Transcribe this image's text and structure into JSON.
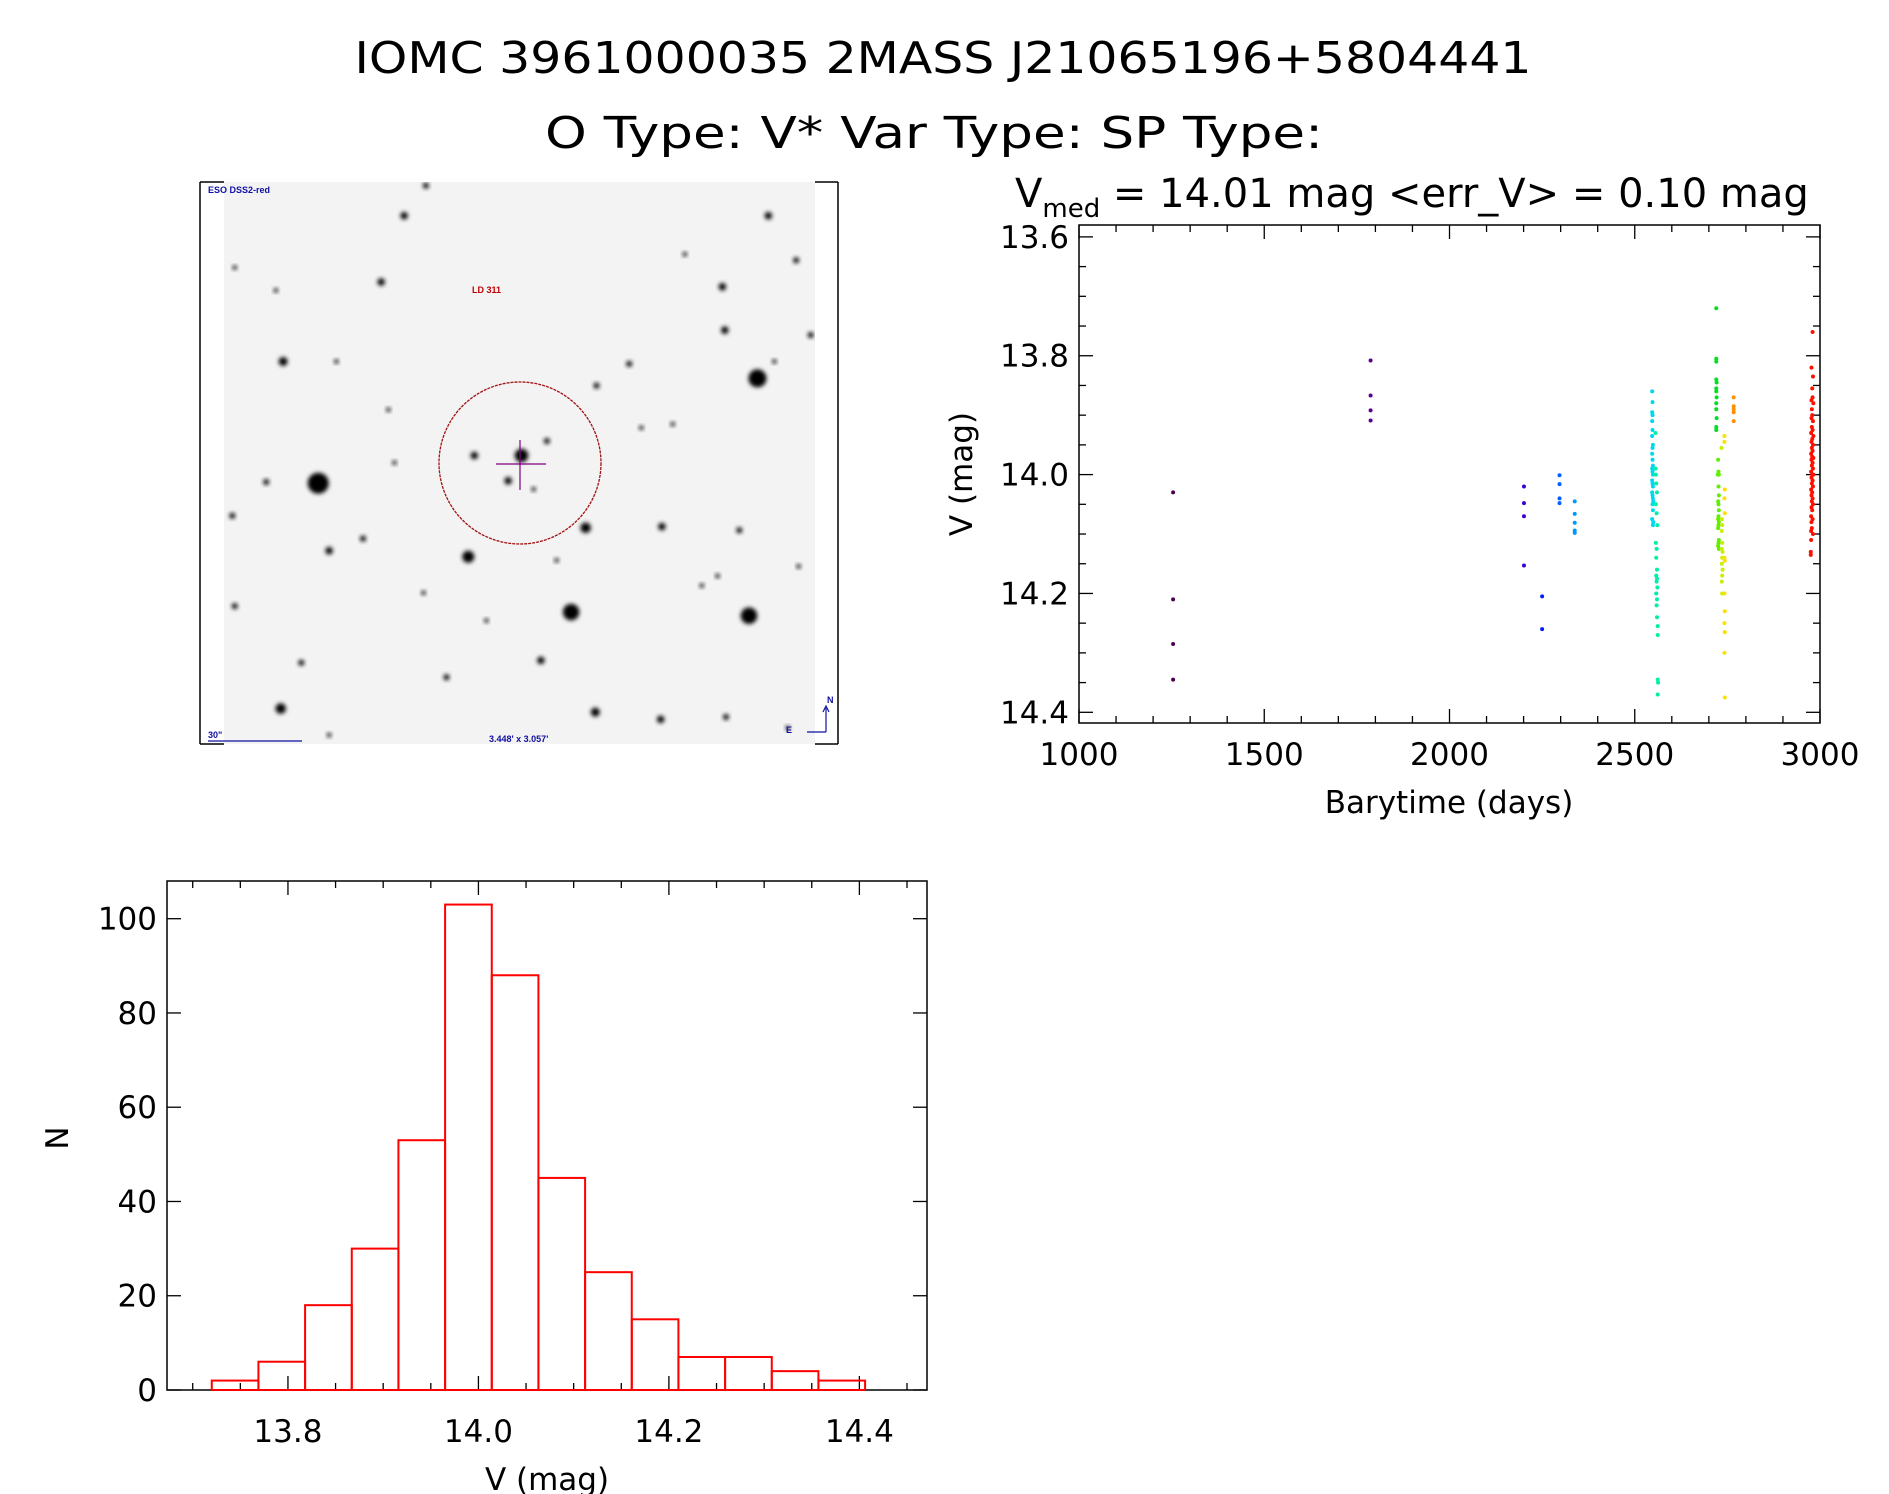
{
  "header": {
    "title_line1": "IOMC 3961000035    2MASS J21065196+5804441",
    "title_line2": "O Type: V*   Var Type:    SP Type:",
    "vmed_prefix": "V",
    "vmed_sub": "med",
    "vmed_rest": " = 14.01 mag <err_V> = 0.10 mag"
  },
  "image_panel": {
    "survey_label": "ESO DSS2-red",
    "object_label": "LD 311",
    "scale_label": "30\"",
    "fov_label": "3.448' x 3.057'",
    "north_label": "N",
    "east_label": "E",
    "label_color": "#1010a0",
    "object_color": "#c00000",
    "circle_color": "#a01010",
    "cross_color": "#800080"
  },
  "chart_data": [
    {
      "type": "scatter",
      "title": "V_med = 14.01 mag <err_V> = 0.10 mag",
      "xlabel": "Barytime (days)",
      "ylabel": "V (mag)",
      "xlim": [
        1000,
        3000
      ],
      "ylim": [
        14.418,
        13.58
      ],
      "xticks": [
        1000,
        1500,
        2000,
        2500,
        3000
      ],
      "xtick_labels": [
        "1000",
        "1500",
        "2000",
        "2500",
        "3000"
      ],
      "yticks": [
        13.6,
        13.8,
        14.0,
        14.2,
        14.4
      ],
      "ytick_labels": [
        "13.6",
        "13.8",
        "14.0",
        "14.2",
        "14.4"
      ],
      "groups": [
        {
          "color": "#4b0050",
          "points": [
            [
              1254,
              14.03
            ],
            [
              1254,
              14.21
            ],
            [
              1254,
              14.285
            ],
            [
              1254,
              14.345
            ]
          ]
        },
        {
          "color": "#5a0090",
          "points": [
            [
              1787,
              13.808
            ],
            [
              1787,
              13.867
            ],
            [
              1787,
              13.892
            ],
            [
              1787,
              13.909
            ]
          ]
        },
        {
          "color": "#4000d0",
          "points": [
            [
              2201,
              14.02
            ],
            [
              2201,
              14.048
            ],
            [
              2201,
              14.07
            ],
            [
              2201,
              14.153
            ]
          ]
        },
        {
          "color": "#0020ff",
          "points": [
            [
              2250,
              14.205
            ],
            [
              2250,
              14.26
            ]
          ]
        },
        {
          "color": "#0060ff",
          "points": [
            [
              2297,
              14.001
            ],
            [
              2297,
              14.016
            ],
            [
              2297,
              14.04
            ],
            [
              2297,
              14.048
            ]
          ]
        },
        {
          "color": "#0098ff",
          "points": [
            [
              2338,
              14.045
            ],
            [
              2338,
              14.066
            ],
            [
              2338,
              14.081
            ],
            [
              2338,
              14.094
            ],
            [
              2338,
              14.098
            ]
          ]
        },
        {
          "color": "#00d8f0",
          "points": [
            [
              2547,
              13.86
            ],
            [
              2548,
              13.878
            ],
            [
              2547,
              13.895
            ],
            [
              2548,
              13.9
            ],
            [
              2547,
              13.91
            ],
            [
              2548,
              13.925
            ],
            [
              2547,
              13.935
            ],
            [
              2549,
              13.95
            ],
            [
              2548,
              13.955
            ],
            [
              2547,
              13.965
            ],
            [
              2548,
              13.975
            ],
            [
              2549,
              13.985
            ],
            [
              2547,
              13.99
            ],
            [
              2548,
              13.995
            ],
            [
              2549,
              14.0
            ],
            [
              2547,
              14.01
            ],
            [
              2548,
              14.015
            ],
            [
              2549,
              14.02
            ],
            [
              2547,
              14.03
            ],
            [
              2548,
              14.035
            ],
            [
              2549,
              14.04
            ],
            [
              2550,
              14.045
            ],
            [
              2548,
              14.05
            ],
            [
              2549,
              14.06
            ],
            [
              2547,
              14.075
            ],
            [
              2550,
              14.08
            ],
            [
              2549,
              14.085
            ]
          ]
        },
        {
          "color": "#00f0a8",
          "points": [
            [
              2556,
              13.93
            ],
            [
              2556,
              13.99
            ],
            [
              2557,
              14.0
            ],
            [
              2558,
              14.015
            ],
            [
              2560,
              14.03
            ],
            [
              2557,
              14.05
            ],
            [
              2559,
              14.065
            ],
            [
              2561,
              14.085
            ],
            [
              2557,
              14.115
            ],
            [
              2559,
              14.125
            ],
            [
              2558,
              14.14
            ],
            [
              2560,
              14.16
            ],
            [
              2558,
              14.17
            ],
            [
              2560,
              14.175
            ],
            [
              2559,
              14.18
            ],
            [
              2561,
              14.19
            ],
            [
              2558,
              14.2
            ],
            [
              2560,
              14.21
            ],
            [
              2559,
              14.22
            ],
            [
              2560,
              14.24
            ],
            [
              2562,
              14.255
            ],
            [
              2562,
              14.27
            ],
            [
              2562,
              14.345
            ],
            [
              2563,
              14.35
            ],
            [
              2562,
              14.37
            ]
          ]
        },
        {
          "color": "#00e020",
          "points": [
            [
              2720,
              13.72
            ],
            [
              2720,
              13.805
            ],
            [
              2720,
              13.81
            ],
            [
              2720,
              13.84
            ],
            [
              2721,
              13.845
            ],
            [
              2720,
              13.855
            ],
            [
              2720,
              13.86
            ],
            [
              2721,
              13.87
            ],
            [
              2720,
              13.88
            ],
            [
              2720,
              13.89
            ],
            [
              2721,
              13.905
            ],
            [
              2720,
              13.92
            ],
            [
              2720,
              13.925
            ]
          ]
        },
        {
          "color": "#60f000",
          "points": [
            [
              2725,
              13.975
            ],
            [
              2726,
              13.995
            ],
            [
              2727,
              14.0
            ],
            [
              2724,
              14.0
            ],
            [
              2726,
              14.02
            ],
            [
              2727,
              14.035
            ],
            [
              2725,
              14.045
            ],
            [
              2726,
              14.05
            ],
            [
              2727,
              14.06
            ],
            [
              2726,
              14.07
            ],
            [
              2725,
              14.075
            ],
            [
              2727,
              14.08
            ],
            [
              2726,
              14.085
            ],
            [
              2725,
              14.09
            ],
            [
              2727,
              14.11
            ],
            [
              2726,
              14.115
            ],
            [
              2725,
              14.12
            ],
            [
              2727,
              14.125
            ]
          ]
        },
        {
          "color": "#c8f000",
          "points": [
            [
              2734,
              13.955
            ],
            [
              2735,
              14.075
            ],
            [
              2736,
              14.085
            ],
            [
              2735,
              14.095
            ],
            [
              2736,
              14.115
            ],
            [
              2735,
              14.125
            ],
            [
              2737,
              14.13
            ],
            [
              2736,
              14.14
            ],
            [
              2735,
              14.15
            ],
            [
              2737,
              14.16
            ],
            [
              2736,
              14.17
            ],
            [
              2735,
              14.18
            ],
            [
              2736,
              14.2
            ]
          ]
        },
        {
          "color": "#ffe000",
          "points": [
            [
              2742,
              13.935
            ],
            [
              2742,
              13.945
            ],
            [
              2743,
              14.025
            ],
            [
              2742,
              14.04
            ],
            [
              2743,
              14.065
            ],
            [
              2742,
              14.14
            ],
            [
              2743,
              14.145
            ],
            [
              2742,
              14.2
            ],
            [
              2743,
              14.23
            ],
            [
              2742,
              14.25
            ],
            [
              2743,
              14.265
            ],
            [
              2742,
              14.3
            ],
            [
              2743,
              14.375
            ]
          ]
        },
        {
          "color": "#ff9000",
          "points": [
            [
              2767,
              13.87
            ],
            [
              2767,
              13.885
            ],
            [
              2767,
              13.89
            ],
            [
              2767,
              13.895
            ],
            [
              2767,
              13.91
            ]
          ]
        },
        {
          "color": "#ff1000",
          "points": [
            [
              2980,
              13.76
            ],
            [
              2977,
              13.82
            ],
            [
              2981,
              13.835
            ],
            [
              2979,
              13.855
            ],
            [
              2980,
              13.87
            ],
            [
              2977,
              13.875
            ],
            [
              2982,
              13.88
            ],
            [
              2978,
              13.89
            ],
            [
              2979,
              13.9
            ],
            [
              2977,
              13.905
            ],
            [
              2981,
              13.91
            ],
            [
              2978,
              13.92
            ],
            [
              2980,
              13.925
            ],
            [
              2976,
              13.93
            ],
            [
              2982,
              13.935
            ],
            [
              2979,
              13.94
            ],
            [
              2977,
              13.945
            ],
            [
              2981,
              13.95
            ],
            [
              2978,
              13.955
            ],
            [
              2980,
              13.96
            ],
            [
              2976,
              13.965
            ],
            [
              2979,
              13.97
            ],
            [
              2982,
              13.972
            ],
            [
              2977,
              13.975
            ],
            [
              2980,
              13.98
            ],
            [
              2978,
              13.985
            ],
            [
              2981,
              13.99
            ],
            [
              2976,
              13.995
            ],
            [
              2979,
              14.0
            ],
            [
              2982,
              14.0
            ],
            [
              2977,
              14.005
            ],
            [
              2980,
              14.01
            ],
            [
              2978,
              14.015
            ],
            [
              2981,
              14.02
            ],
            [
              2976,
              14.025
            ],
            [
              2979,
              14.03
            ],
            [
              2977,
              14.035
            ],
            [
              2980,
              14.04
            ],
            [
              2978,
              14.045
            ],
            [
              2981,
              14.05
            ],
            [
              2977,
              14.055
            ],
            [
              2979,
              14.06
            ],
            [
              2976,
              14.07
            ],
            [
              2980,
              14.075
            ],
            [
              2977,
              14.08
            ],
            [
              2978,
              14.09
            ],
            [
              2976,
              14.095
            ],
            [
              2981,
              14.1
            ],
            [
              2976,
              14.11
            ],
            [
              2975,
              14.13
            ],
            [
              2975,
              14.135
            ]
          ]
        }
      ]
    },
    {
      "type": "bar",
      "xlabel": "V (mag)",
      "ylabel": "N",
      "xlim": [
        13.673,
        14.471
      ],
      "ylim": [
        0,
        108
      ],
      "bin_start": 13.72,
      "bin_width": 0.049,
      "values": [
        2,
        6,
        18,
        30,
        53,
        103,
        88,
        45,
        25,
        15,
        7,
        7,
        4,
        2
      ],
      "bar_color": "#ff0000",
      "xticks": [
        13.8,
        14.0,
        14.2,
        14.4
      ],
      "xtick_labels": [
        "13.8",
        "14.0",
        "14.2",
        "14.4"
      ],
      "yticks": [
        0,
        20,
        40,
        60,
        80,
        100
      ],
      "ytick_labels": [
        "0",
        "20",
        "40",
        "60",
        "80",
        "100"
      ]
    }
  ]
}
